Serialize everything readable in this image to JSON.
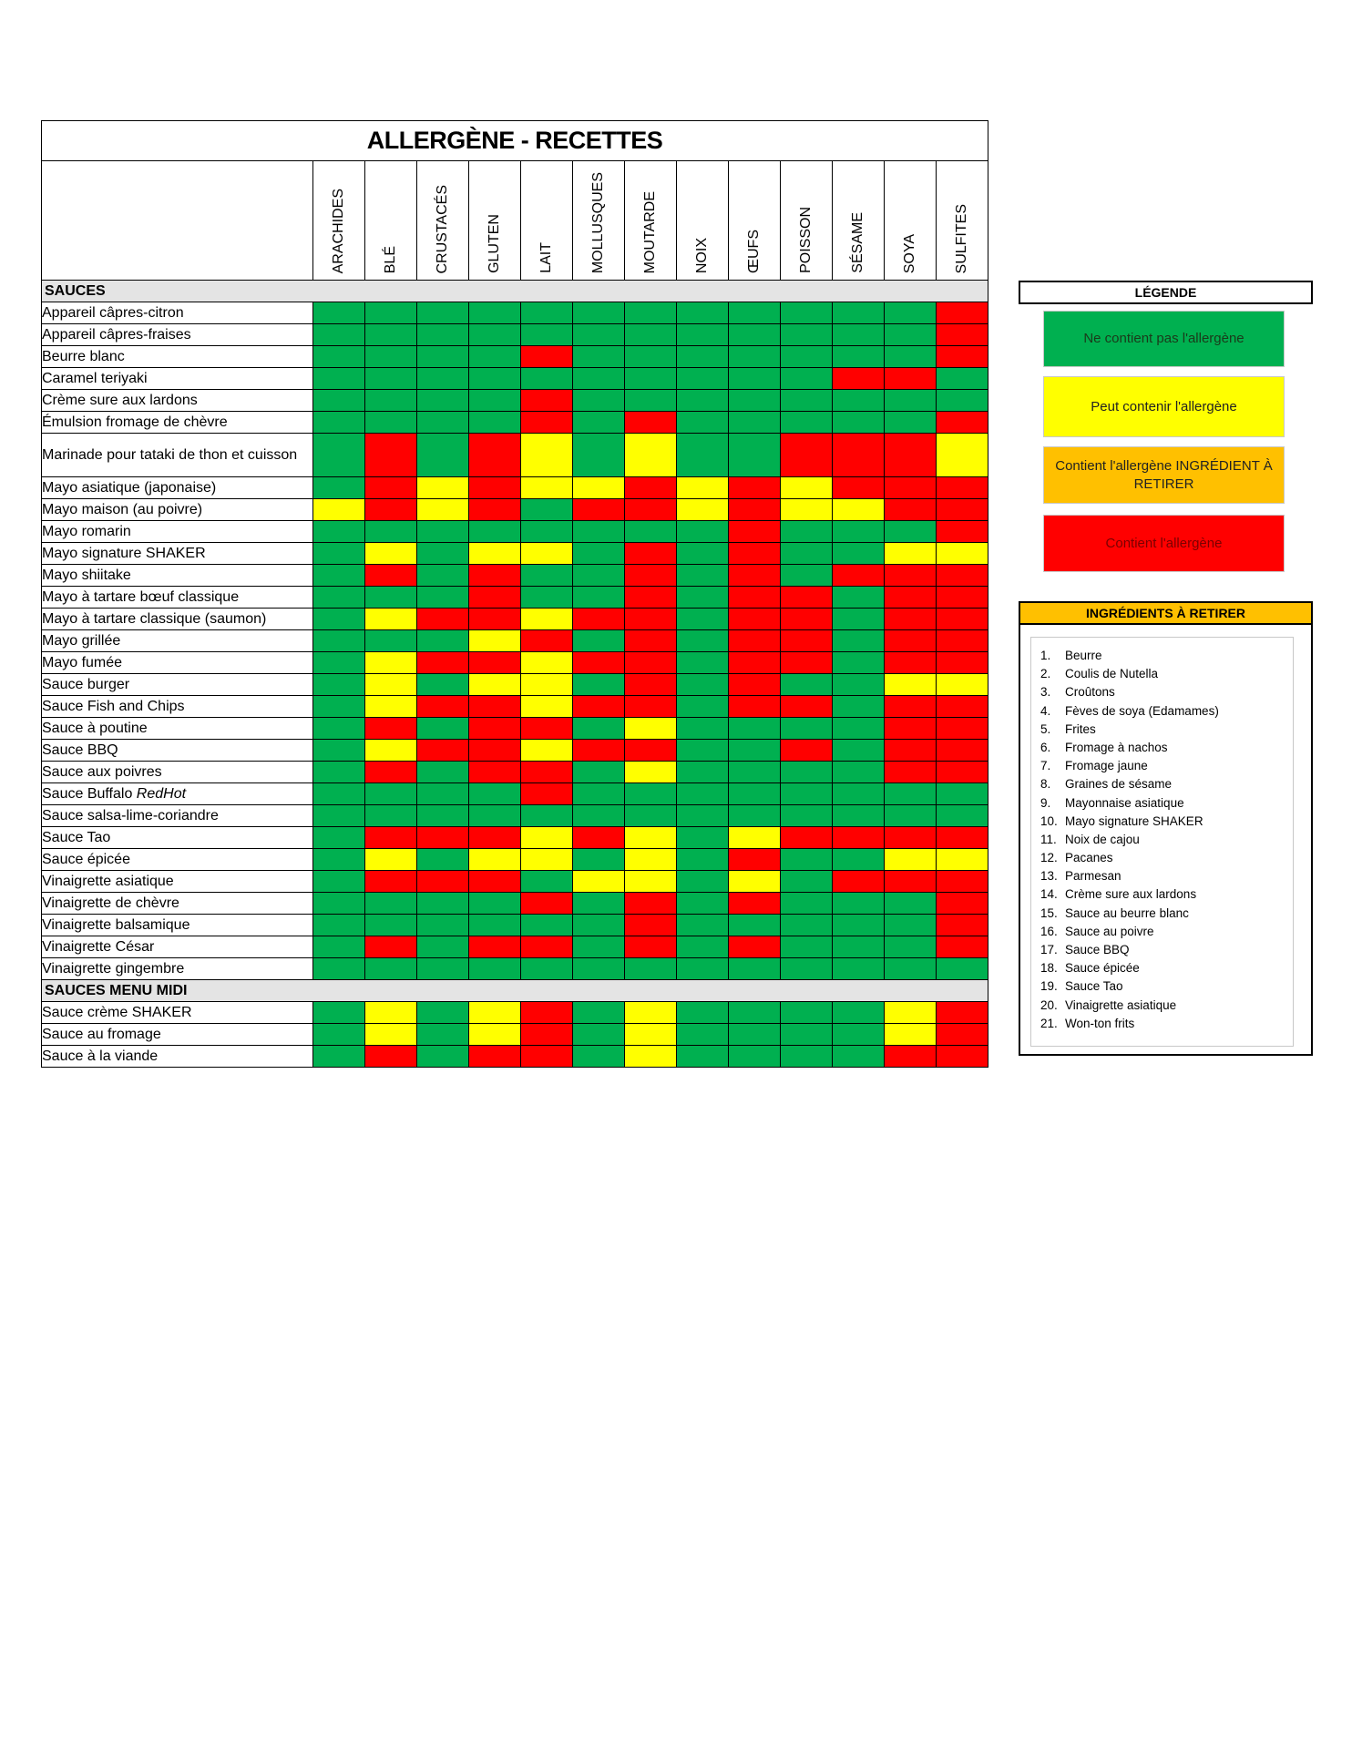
{
  "title": "ALLERGÈNE - RECETTES",
  "allergens": [
    "ARACHIDES",
    "BLÉ",
    "CRUSTACÉS",
    "GLUTEN",
    "LAIT",
    "MOLLUSQUES",
    "MOUTARDE",
    "NOIX",
    "ŒUFS",
    "POISSON",
    "SÉSAME",
    "SOYA",
    "SULFITES"
  ],
  "statuses": {
    "G": {
      "label": "Ne contient pas l'allergène",
      "color": "#00b050"
    },
    "Y": {
      "label": "Peut contenir l'allergène",
      "color": "#ffff00"
    },
    "O": {
      "label": "Contient  l'allergène INGRÉDIENT À RETIRER",
      "color": "#ffc000"
    },
    "R": {
      "label": "Contient l'allergène",
      "color": "#ff0000"
    }
  },
  "sections": [
    {
      "name": "SAUCES",
      "rows": [
        {
          "label": "Appareil câpres-citron",
          "cells": "GGGGGGGGGGGGR"
        },
        {
          "label": "Appareil câpres-fraises",
          "cells": "GGGGGGGGGGGGR"
        },
        {
          "label": "Beurre blanc",
          "cells": "GGGGRGGGGGGGR"
        },
        {
          "label": "Caramel teriyaki",
          "cells": "GGGGGGGGGGRRG"
        },
        {
          "label": "Crème sure aux lardons",
          "cells": "GGGGRGGGGGGGG"
        },
        {
          "label": "Émulsion fromage de chèvre",
          "cells": "GGGGRGRGGGGGR"
        },
        {
          "label": "Marinade pour tataki de thon et cuisson",
          "cells": "GRGRYGYGGRRRY",
          "tall": true
        },
        {
          "label": "Mayo asiatique (japonaise)",
          "cells": "GRYRYYRYRYRRR"
        },
        {
          "label": "Mayo maison (au poivre)",
          "cells": "YRYRGRRYRYYRR"
        },
        {
          "label": "Mayo romarin",
          "cells": "GGGGGGGGRGGGR"
        },
        {
          "label": "Mayo signature SHAKER",
          "cells": "GYGYYGRGRGGYY"
        },
        {
          "label": "Mayo shiitake",
          "cells": "GRGRGGRGRGRRR"
        },
        {
          "label": "Mayo à tartare bœuf classique",
          "cells": "GGGRGGRGRRGRR"
        },
        {
          "label": "Mayo à tartare classique (saumon)",
          "cells": "GYRRYRRGRRGRR"
        },
        {
          "label": "Mayo grillée",
          "cells": "GGGYRGRGRRGRR"
        },
        {
          "label": "Mayo fumée",
          "cells": "GYRRYRRGRRGRR"
        },
        {
          "label": "Sauce burger",
          "cells": "GYGYYGRGRGGYY"
        },
        {
          "label": "Sauce Fish and Chips",
          "cells": "GYRRYRRGRRGRR"
        },
        {
          "label": "Sauce à poutine",
          "cells": "GRGRRGYGGGGRR"
        },
        {
          "label": "Sauce BBQ",
          "cells": "GYRRYRRGGRGRR"
        },
        {
          "label": "Sauce aux poivres",
          "cells": "GRGRRGYGGGGRR"
        },
        {
          "label": "Sauce Buffalo ",
          "label_italic": "RedHot",
          "cells": "GGGGRGGGGGGGG"
        },
        {
          "label": "Sauce salsa-lime-coriandre",
          "cells": "GGGGGGGGGGGGG"
        },
        {
          "label": "Sauce Tao",
          "cells": "GRRRYRYGYRRRR"
        },
        {
          "label": "Sauce épicée",
          "cells": "GYGYYGYGRGGYY"
        },
        {
          "label": "Vinaigrette asiatique",
          "cells": "GRRRGYYGYGRRR"
        },
        {
          "label": "Vinaigrette de chèvre",
          "cells": "GGGGRGRGRGGGR"
        },
        {
          "label": "Vinaigrette balsamique",
          "cells": "GGGGGGRGGGGGR"
        },
        {
          "label": "Vinaigrette César",
          "cells": "GRGRRGRGRGGGR"
        },
        {
          "label": "Vinaigrette gingembre",
          "cells": "GGGGGGGGGGGGG"
        }
      ]
    },
    {
      "name": "SAUCES MENU MIDI",
      "rows": [
        {
          "label": "Sauce crème SHAKER",
          "cells": "GYGYRGYGGGGYR"
        },
        {
          "label": "Sauce au fromage",
          "cells": "GYGYRGYGGGGYR"
        },
        {
          "label": "Sauce à la viande",
          "cells": "GRGRRGYGGGGRR"
        }
      ]
    }
  ],
  "legend": {
    "title": "LÉGENDE",
    "items": [
      {
        "code": "G",
        "label": "Ne contient pas l'allergène",
        "text_color": "#1a3a1a"
      },
      {
        "code": "Y",
        "label": "Peut contenir l'allergène",
        "text_color": "#222222"
      },
      {
        "code": "O",
        "label": "Contient  l'allergène INGRÉDIENT À RETIRER",
        "text_color": "#222222"
      },
      {
        "code": "R",
        "label": "Contient l'allergène",
        "text_color": "#7a0000"
      }
    ]
  },
  "ingredients": {
    "title": "INGRÉDIENTS À RETIRER",
    "items": [
      "Beurre",
      "Coulis de Nutella",
      "Croûtons",
      "Fèves de soya (Edamames)",
      "Frites",
      "Fromage à nachos",
      "Fromage jaune",
      "Graines de sésame",
      "Mayonnaise asiatique",
      "Mayo signature SHAKER",
      "Noix de cajou",
      "Pacanes",
      "Parmesan",
      "Crème sure aux lardons",
      "Sauce au beurre blanc",
      "Sauce au poivre",
      "Sauce BBQ",
      "Sauce épicée",
      "Sauce Tao",
      "Vinaigrette asiatique",
      "Won-ton frits"
    ]
  }
}
